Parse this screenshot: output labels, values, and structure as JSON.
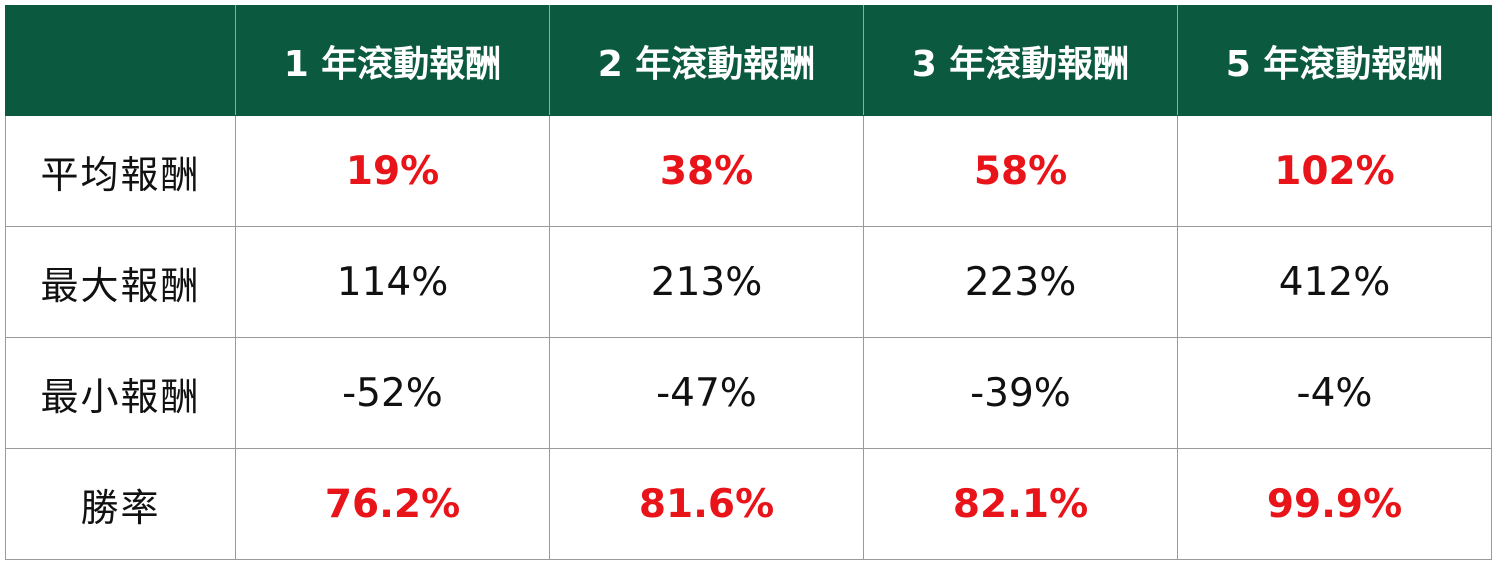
{
  "table": {
    "headers": [
      "",
      "1 年滾動報酬",
      "2 年滾動報酬",
      "3 年滾動報酬",
      "5 年滾動報酬"
    ],
    "rows": [
      {
        "label": "平均報酬",
        "values": [
          "19%",
          "38%",
          "58%",
          "102%"
        ],
        "highlight": true
      },
      {
        "label": "最大報酬",
        "values": [
          "114%",
          "213%",
          "223%",
          "412%"
        ],
        "highlight": false
      },
      {
        "label": "最小報酬",
        "values": [
          "-52%",
          "-47%",
          "-39%",
          "-4%"
        ],
        "highlight": false
      },
      {
        "label": "勝率",
        "values": [
          "76.2%",
          "81.6%",
          "82.1%",
          "99.9%"
        ],
        "highlight": true
      }
    ],
    "colors": {
      "header_bg": "#0b5a3f",
      "header_text": "#ffffff",
      "highlight_text": "#e8141a",
      "normal_text": "#111111"
    }
  }
}
